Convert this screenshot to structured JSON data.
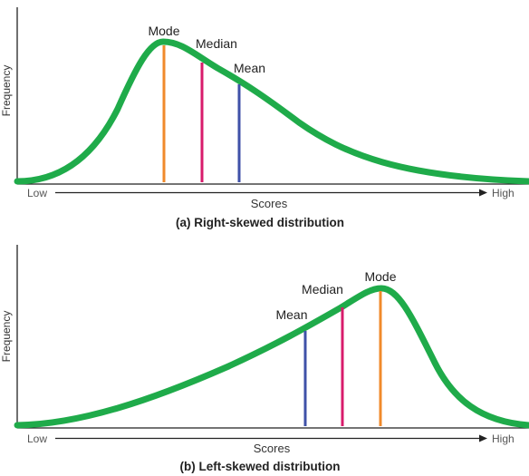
{
  "panels": [
    {
      "caption": "(a) Right-skewed distribution",
      "y_label": "Frequency",
      "x_label": "Scores",
      "x_low": "Low",
      "x_high": "High",
      "markers": [
        {
          "label": "Mode",
          "color": "#f08a2b"
        },
        {
          "label": "Median",
          "color": "#d81b6b"
        },
        {
          "label": "Mean",
          "color": "#3f51a8"
        }
      ]
    },
    {
      "caption": "(b) Left-skewed distribution",
      "y_label": "Frequency",
      "x_label": "Scores",
      "x_low": "Low",
      "x_high": "High",
      "markers": [
        {
          "label": "Mean",
          "color": "#3f51a8"
        },
        {
          "label": "Median",
          "color": "#d81b6b"
        },
        {
          "label": "Mode",
          "color": "#f08a2b"
        }
      ]
    }
  ],
  "colors": {
    "curve": "#1fab4a",
    "axis": "#222222"
  }
}
